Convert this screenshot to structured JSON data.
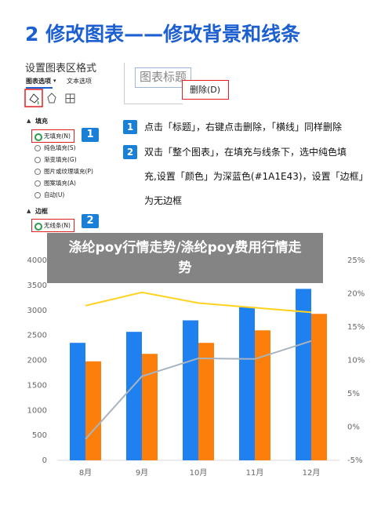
{
  "header": {
    "title": "2 修改图表——修改背景和线条"
  },
  "panel": {
    "title": "设置图表区格式",
    "tabs": [
      "图表选项",
      "文本选项"
    ],
    "fill": {
      "heading": "填充",
      "options": [
        "无填充(N)",
        "纯色填充(S)",
        "渐变填充(G)",
        "图片或纹理填充(P)",
        "图案填充(A)",
        "自动(U)"
      ],
      "badge": "1"
    },
    "border": {
      "heading": "边框",
      "options": [
        "无线条(N)"
      ],
      "badge": "2"
    }
  },
  "menu": {
    "chart_title": "图表标题",
    "item": "删除(D)"
  },
  "steps": [
    {
      "number": "1",
      "lines": [
        "点击「标题」，右键点击删除，「横线」同样删除"
      ]
    },
    {
      "number": "2",
      "lines": [
        "双击「整个图表」，在填充与线条下，选中纯色填",
        "充,设置「颜色」为深蓝色(#1A1E43)，设置「边框」",
        "为无边框"
      ]
    }
  ],
  "chart_data": {
    "type": "bar",
    "title": "涤纶poy行情走势/涤纶poy费用行情走势",
    "categories": [
      "8月",
      "9月",
      "10月",
      "11月",
      "12月"
    ],
    "series": [
      {
        "color": "#1f80f0",
        "values": [
          2350,
          2570,
          2800,
          3060,
          3430
        ]
      },
      {
        "color": "#fc7f0c",
        "values": [
          1980,
          2130,
          2350,
          2600,
          2930
        ]
      },
      {
        "color": "#ffd21f",
        "values": [
          18.2,
          20.2,
          18.6,
          17.9,
          17.2
        ],
        "axis": "y2",
        "type": "line"
      },
      {
        "color": "#a8b3c0",
        "values": [
          -1.8,
          7.6,
          10.3,
          10.2,
          12.9
        ],
        "axis": "y2",
        "type": "line"
      }
    ],
    "ylim": [
      0,
      4000
    ],
    "yticks": [
      0,
      500,
      1000,
      1500,
      2000,
      2500,
      3000,
      3500,
      4000
    ],
    "y2lim": [
      -5,
      25
    ],
    "y2ticks": [
      {
        "value": -5,
        "label": "-5%"
      },
      {
        "value": 0,
        "label": "0%"
      },
      {
        "value": 5,
        "label": "5%"
      },
      {
        "value": 10,
        "label": "10%"
      },
      {
        "value": 15,
        "label": "15%"
      },
      {
        "value": 20,
        "label": "20%"
      },
      {
        "value": 25,
        "label": "25%"
      }
    ],
    "grid": false
  }
}
